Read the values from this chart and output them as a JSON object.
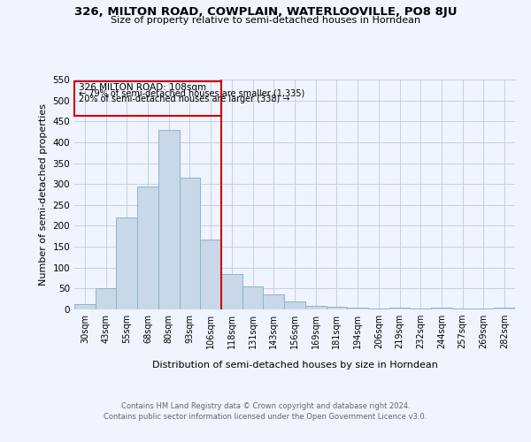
{
  "title1": "326, MILTON ROAD, COWPLAIN, WATERLOOVILLE, PO8 8JU",
  "title2": "Size of property relative to semi-detached houses in Horndean",
  "xlabel": "Distribution of semi-detached houses by size in Horndean",
  "ylabel": "Number of semi-detached properties",
  "categories": [
    "30sqm",
    "43sqm",
    "55sqm",
    "68sqm",
    "80sqm",
    "93sqm",
    "106sqm",
    "118sqm",
    "131sqm",
    "143sqm",
    "156sqm",
    "169sqm",
    "181sqm",
    "194sqm",
    "206sqm",
    "219sqm",
    "232sqm",
    "244sqm",
    "257sqm",
    "269sqm",
    "282sqm"
  ],
  "values": [
    13,
    50,
    220,
    295,
    430,
    315,
    167,
    85,
    56,
    35,
    18,
    8,
    7,
    5,
    3,
    5,
    2,
    5,
    2,
    2,
    5
  ],
  "bar_color": "#c8d8e8",
  "bar_edge_color": "#8ab4cc",
  "property_index": 6,
  "property_label": "326 MILTON ROAD: 108sqm",
  "pct_smaller": "79% of semi-detached houses are smaller (1,335)",
  "pct_larger": "20% of semi-detached houses are larger (338)",
  "vline_color": "#cc0000",
  "ylim": [
    0,
    550
  ],
  "yticks": [
    0,
    50,
    100,
    150,
    200,
    250,
    300,
    350,
    400,
    450,
    500,
    550
  ],
  "footnote1": "Contains HM Land Registry data © Crown copyright and database right 2024.",
  "footnote2": "Contains public sector information licensed under the Open Government Licence v3.0.",
  "bg_color": "#f0f4ff"
}
